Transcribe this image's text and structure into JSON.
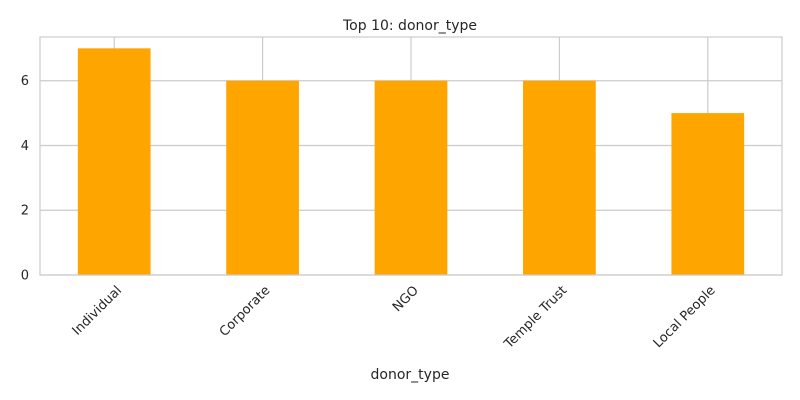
{
  "chart_data": {
    "type": "bar",
    "title": "Top 10: donor_type",
    "xlabel": "donor_type",
    "ylabel": "",
    "categories": [
      "Individual",
      "Corporate",
      "NGO",
      "Temple Trust",
      "Local People"
    ],
    "values": [
      7,
      6,
      6,
      6,
      5
    ],
    "yticks": [
      0,
      2,
      4,
      6
    ],
    "ylim": [
      0,
      7.35
    ],
    "grid": true,
    "bar_color": "#FFA500",
    "tick_label_rotation": 45
  }
}
